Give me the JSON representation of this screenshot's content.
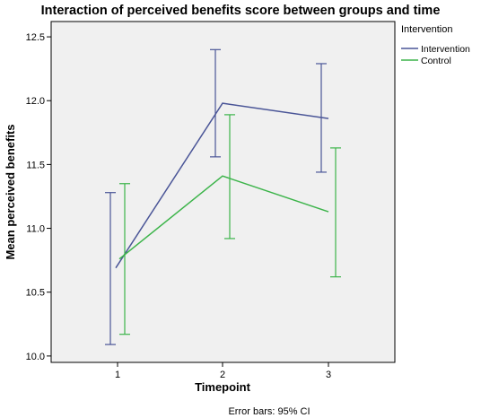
{
  "chart_data": {
    "type": "line",
    "title": "Interaction of perceived benefits score between groups and time",
    "xlabel": "Timepoint",
    "ylabel": "Mean perceived benefits",
    "categories": [
      "1",
      "2",
      "3"
    ],
    "y_ticks": [
      "10.0",
      "10.5",
      "11.0",
      "11.5",
      "12.0",
      "12.5"
    ],
    "ylim": [
      9.95,
      12.62
    ],
    "legend": {
      "title": "Intervention",
      "position": "top-right"
    },
    "series": [
      {
        "name": "Intervention",
        "color": "#4a5597",
        "values": [
          10.69,
          11.98,
          11.86
        ],
        "ci_lower": [
          10.09,
          11.56,
          11.44
        ],
        "ci_upper": [
          11.28,
          12.4,
          12.29
        ]
      },
      {
        "name": "Control",
        "color": "#3cb44a",
        "values": [
          10.76,
          11.41,
          11.13
        ],
        "ci_lower": [
          10.17,
          10.92,
          10.62
        ],
        "ci_upper": [
          11.35,
          11.89,
          11.63
        ]
      }
    ],
    "footnote": "Error bars: 95% CI",
    "grid": false,
    "plot_background": "#f0f0f0"
  }
}
